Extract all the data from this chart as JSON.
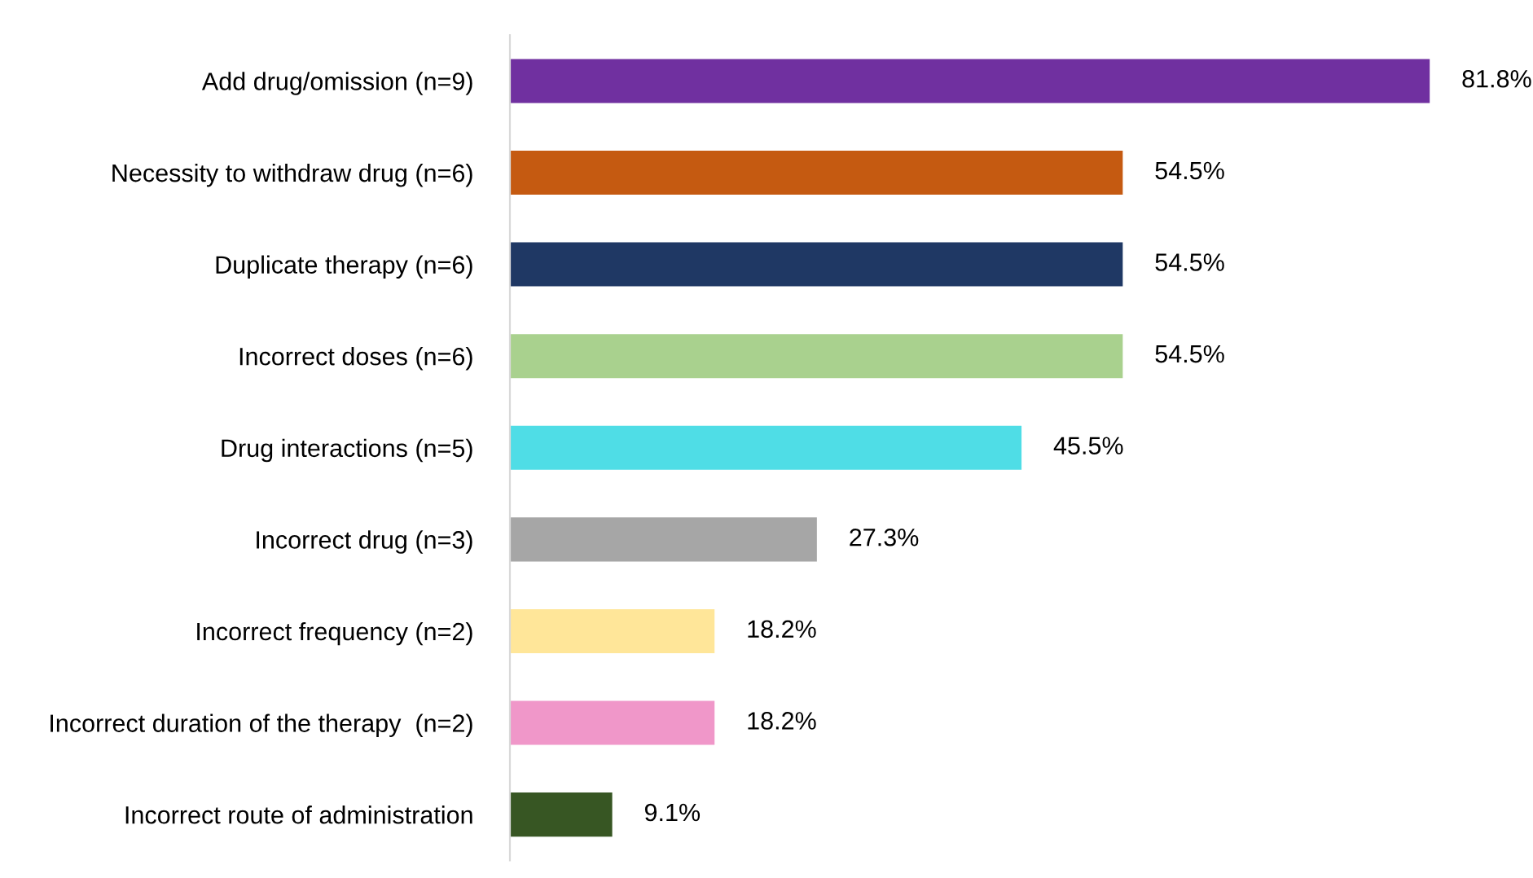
{
  "chart_data": {
    "type": "bar",
    "orientation": "horizontal",
    "data_labels": true,
    "grid": false,
    "legend": false,
    "categories": [
      "Add drug/omission (n=9)",
      "Necessity to withdraw drug (n=6)",
      "Duplicate therapy (n=6)",
      "Incorrect doses (n=6)",
      "Drug interactions (n=5)",
      "Incorrect drug (n=3)",
      "Incorrect frequency (n=2)",
      "Incorrect duration of the therapy  (n=2)",
      "Incorrect route of administration"
    ],
    "values": [
      81.8,
      54.5,
      54.5,
      54.5,
      45.5,
      27.3,
      18.2,
      18.2,
      9.1
    ],
    "colors": [
      "#7030a0",
      "#c55a11",
      "#1f3864",
      "#a9d18e",
      "#4fdde6",
      "#a6a6a6",
      "#ffe699",
      "#f097c9",
      "#375623"
    ],
    "value_labels": [
      "81.8%",
      "54.5%",
      "54.5%",
      "54.5%",
      "45.5%",
      "27.3%",
      "18.2%",
      "18.2%",
      "9.1%"
    ]
  }
}
